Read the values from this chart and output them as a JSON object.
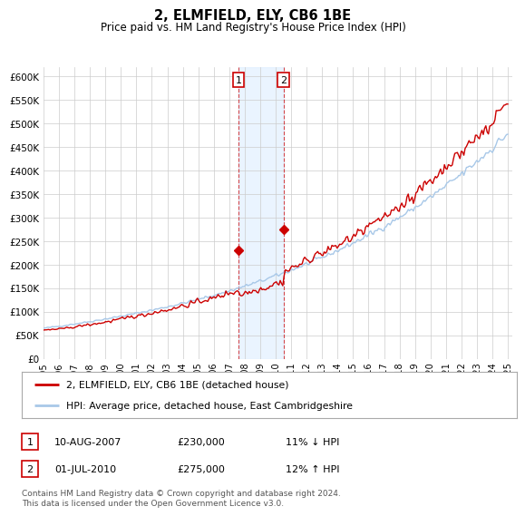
{
  "title": "2, ELMFIELD, ELY, CB6 1BE",
  "subtitle": "Price paid vs. HM Land Registry's House Price Index (HPI)",
  "ylabel_ticks": [
    "£0",
    "£50K",
    "£100K",
    "£150K",
    "£200K",
    "£250K",
    "£300K",
    "£350K",
    "£400K",
    "£450K",
    "£500K",
    "£550K",
    "£600K"
  ],
  "ylim": [
    0,
    620000
  ],
  "ytick_vals": [
    0,
    50000,
    100000,
    150000,
    200000,
    250000,
    300000,
    350000,
    400000,
    450000,
    500000,
    550000,
    600000
  ],
  "year_start": 1995,
  "year_end": 2025,
  "hpi_color": "#a8c8e8",
  "price_color": "#cc0000",
  "sale1_date": 2007.6,
  "sale1_price": 230000,
  "sale2_date": 2010.5,
  "sale2_price": 275000,
  "legend_label_red": "2, ELMFIELD, ELY, CB6 1BE (detached house)",
  "legend_label_blue": "HPI: Average price, detached house, East Cambridgeshire",
  "table_row1": [
    "1",
    "10-AUG-2007",
    "£230,000",
    "11% ↓ HPI"
  ],
  "table_row2": [
    "2",
    "01-JUL-2010",
    "£275,000",
    "12% ↑ HPI"
  ],
  "footnote": "Contains HM Land Registry data © Crown copyright and database right 2024.\nThis data is licensed under the Open Government Licence v3.0.",
  "bg_color": "#ffffff",
  "grid_color": "#cccccc",
  "shade_color": "#ddeeff"
}
